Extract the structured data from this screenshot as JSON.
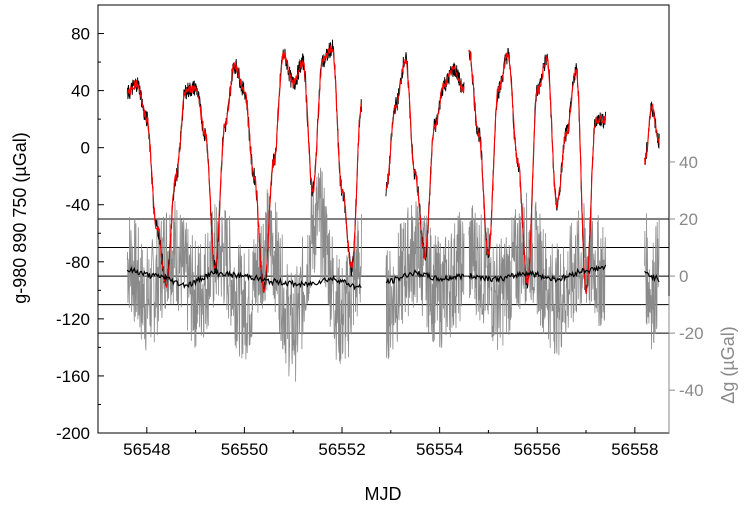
{
  "chart_data": {
    "type": "line",
    "title": "",
    "xlabel": "MJD",
    "ylabel": "g-980 890 750 (µGal)",
    "y2label": "Δg (µGal)",
    "xlim": [
      56547.0,
      56558.7
    ],
    "ylim": [
      -200,
      100
    ],
    "y2lim": [
      -55,
      95
    ],
    "x_ticks": [
      56548,
      56550,
      56552,
      56554,
      56556,
      56558
    ],
    "y_ticks": [
      80,
      40,
      0,
      -40,
      -80,
      -120,
      -160,
      -200
    ],
    "y2_ticks": [
      40,
      20,
      0,
      -20,
      -40
    ],
    "y2_ticks_displayed": [
      "40",
      "20",
      "0",
      "-20",
      "-40"
    ],
    "reference_lines_y2": [
      20,
      10,
      0,
      -10,
      -20
    ],
    "grid": false,
    "colors": {
      "observed": "#000000",
      "model": "#ff0000",
      "residual": "#8a8a8a",
      "residual_mean": "#000000",
      "reference_lines": "#000000",
      "axis_left": "#000000",
      "axis_right": "#8a8a8a"
    },
    "series": [
      {
        "key": "observed",
        "axis": "left",
        "segments": [
          {
            "x": [
              56547.6,
              56547.8,
              56548.0,
              56548.2,
              56548.4,
              56548.6,
              56548.8,
              56549.0,
              56549.2,
              56549.4,
              56549.6,
              56549.8,
              56550.0,
              56550.2,
              56550.4,
              56550.6,
              56550.8,
              56551.0,
              56551.2,
              56551.4,
              56551.6,
              56551.8,
              56552.0,
              56552.2,
              56552.4
            ],
            "y": [
              38,
              45,
              20,
              -55,
              -95,
              -20,
              40,
              42,
              10,
              -85,
              15,
              58,
              40,
              -20,
              -100,
              -10,
              65,
              45,
              60,
              -30,
              60,
              70,
              -30,
              -85,
              30
            ]
          },
          {
            "x": [
              56552.9,
              56553.1,
              56553.3,
              56553.5,
              56553.7,
              56553.9,
              56554.1,
              56554.3,
              56554.5
            ],
            "y": [
              -30,
              30,
              62,
              -20,
              -75,
              15,
              45,
              55,
              40
            ]
          },
          {
            "x": [
              56554.6,
              56554.8,
              56555.0,
              56555.2,
              56555.4,
              56555.6,
              56555.8,
              56556.0,
              56556.2,
              56556.4,
              56556.6,
              56556.8,
              56557.0,
              56557.2,
              56557.4
            ],
            "y": [
              68,
              10,
              -75,
              40,
              65,
              -10,
              -95,
              40,
              62,
              -40,
              10,
              55,
              -100,
              20,
              20
            ]
          },
          {
            "x": [
              56558.2,
              56558.35,
              56558.5
            ],
            "y": [
              -10,
              28,
              5
            ]
          }
        ]
      },
      {
        "key": "model",
        "axis": "left",
        "segments": [
          {
            "x": [
              56547.6,
              56547.8,
              56548.0,
              56548.2,
              56548.4,
              56548.6,
              56548.8,
              56549.0,
              56549.2,
              56549.4,
              56549.6,
              56549.8,
              56550.0,
              56550.2,
              56550.4,
              56550.6,
              56550.8,
              56551.0,
              56551.2,
              56551.4,
              56551.6,
              56551.8,
              56552.0,
              56552.2,
              56552.4
            ],
            "y": [
              38,
              45,
              20,
              -55,
              -95,
              -20,
              40,
              42,
              10,
              -85,
              15,
              58,
              40,
              -20,
              -100,
              -10,
              65,
              45,
              60,
              -30,
              60,
              70,
              -30,
              -85,
              30
            ]
          },
          {
            "x": [
              56552.9,
              56553.1,
              56553.3,
              56553.5,
              56553.7,
              56553.9,
              56554.1,
              56554.3,
              56554.5
            ],
            "y": [
              -30,
              30,
              62,
              -20,
              -75,
              15,
              45,
              55,
              40
            ]
          },
          {
            "x": [
              56554.6,
              56554.8,
              56555.0,
              56555.2,
              56555.4,
              56555.6,
              56555.8,
              56556.0,
              56556.2,
              56556.4,
              56556.6,
              56556.8,
              56557.0,
              56557.2,
              56557.4
            ],
            "y": [
              68,
              10,
              -75,
              40,
              65,
              -10,
              -95,
              40,
              62,
              -40,
              10,
              55,
              -100,
              20,
              20
            ]
          },
          {
            "x": [
              56558.2,
              56558.35,
              56558.5
            ],
            "y": [
              -10,
              28,
              5
            ]
          }
        ]
      },
      {
        "key": "residual",
        "axis": "right",
        "segments": [
          {
            "x": [
              56547.6,
              56548.0,
              56548.5,
              56549.0,
              56549.5,
              56550.0,
              56550.5,
              56551.0,
              56551.5,
              56552.0,
              56552.4
            ],
            "y": [
              6,
              -8,
              10,
              -6,
              8,
              -10,
              12,
              -18,
              20,
              -14,
              4
            ]
          },
          {
            "x": [
              56552.9,
              56553.5,
              56554.0,
              56554.5
            ],
            "y": [
              -10,
              8,
              -6,
              4
            ]
          },
          {
            "x": [
              56554.6,
              56555.2,
              56555.8,
              56556.4,
              56557.0,
              56557.4
            ],
            "y": [
              8,
              -6,
              10,
              -8,
              6,
              0
            ]
          },
          {
            "x": [
              56558.2,
              56558.35,
              56558.5
            ],
            "y": [
              4,
              -6,
              2
            ]
          }
        ]
      },
      {
        "key": "residual-mean",
        "axis": "right",
        "segments": [
          {
            "x": [
              56547.6,
              56548.2,
              56548.8,
              56549.4,
              56550.0,
              56550.6,
              56551.2,
              56551.8,
              56552.4
            ],
            "y": [
              2,
              0,
              -3,
              1,
              0,
              -2,
              -3,
              -1,
              -4
            ]
          },
          {
            "x": [
              56552.9,
              56553.5,
              56554.0,
              56554.5
            ],
            "y": [
              -2,
              1,
              -1,
              0
            ]
          },
          {
            "x": [
              56554.6,
              56555.2,
              56555.8,
              56556.4,
              56557.0,
              56557.4
            ],
            "y": [
              0,
              -1,
              1,
              -1,
              2,
              3
            ]
          },
          {
            "x": [
              56558.2,
              56558.5
            ],
            "y": [
              1,
              -1
            ]
          }
        ]
      }
    ]
  }
}
